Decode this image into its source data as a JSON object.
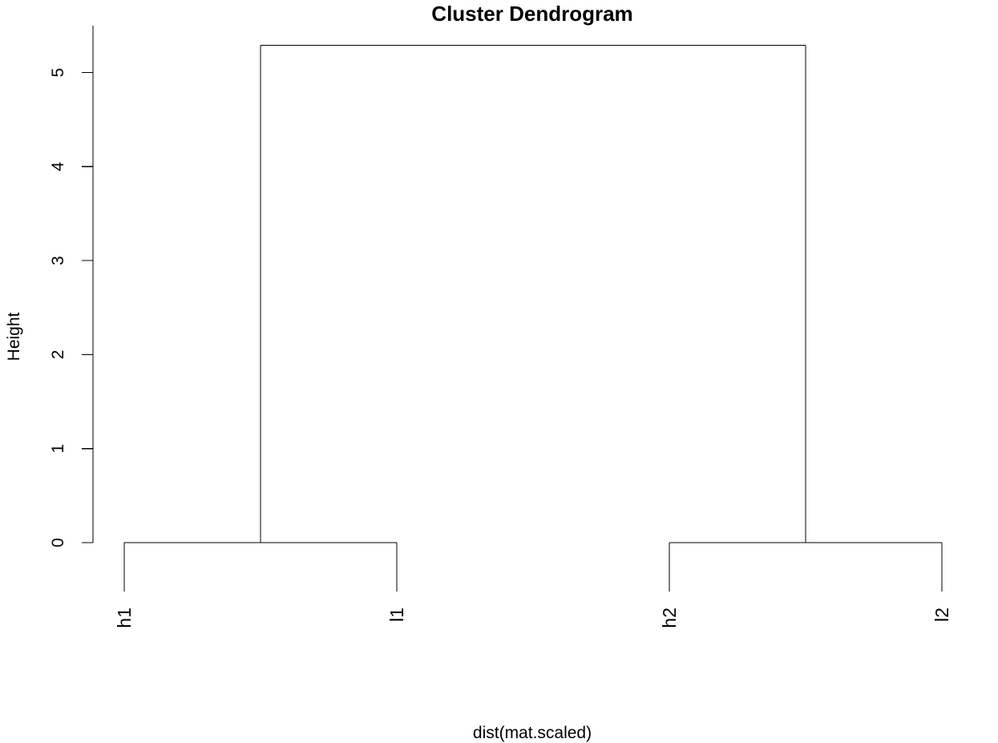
{
  "chart_data": {
    "type": "dendrogram",
    "title": "Cluster Dendrogram",
    "xlabel": "dist(mat.scaled)",
    "ylabel": "Height",
    "ylim": [
      0,
      5.5
    ],
    "yticks": [
      0,
      1,
      2,
      3,
      4,
      5
    ],
    "leaves": [
      "h1",
      "l1",
      "h2",
      "l2"
    ],
    "merges": [
      {
        "left": "h1",
        "right": "l1",
        "height": 0
      },
      {
        "left": "h2",
        "right": "l2",
        "height": 0
      },
      {
        "left": "h1+l1",
        "right": "h2+l2",
        "height": 5.29
      }
    ],
    "colors": {
      "line": "#000000",
      "background": "#ffffff"
    }
  }
}
